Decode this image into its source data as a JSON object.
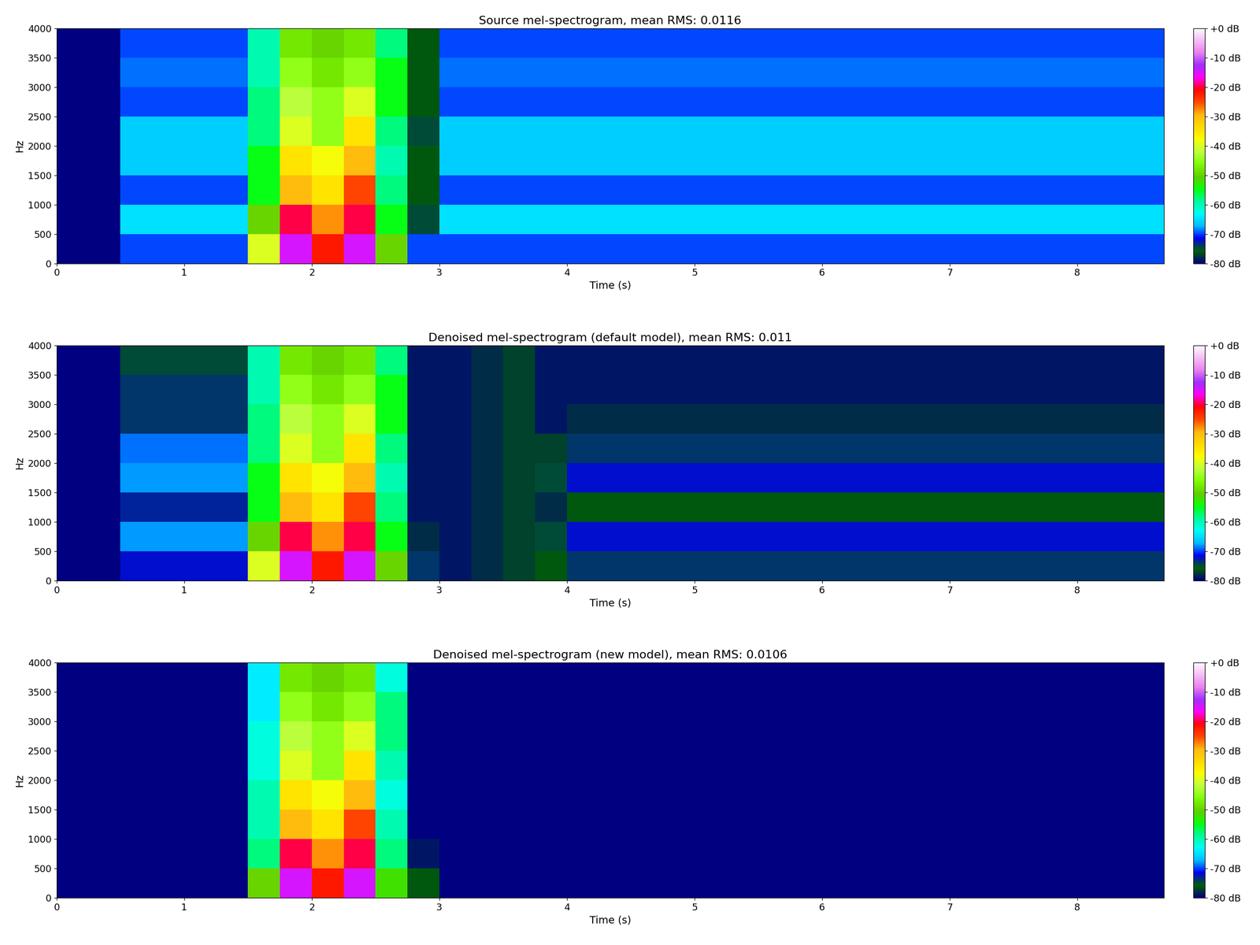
{
  "chart_data": [
    {
      "type": "heatmap",
      "title": "Source mel-spectrogram, mean RMS: 0.0116",
      "x_label": "Time (s)",
      "y_label": "Hz",
      "x_edges": [
        0,
        0.25,
        0.5,
        0.75,
        1,
        1.25,
        1.5,
        1.75,
        2,
        2.25,
        2.5,
        2.75,
        3,
        3.25,
        3.5,
        3.75,
        4,
        4.25,
        4.5,
        4.75,
        5,
        5.25,
        5.5,
        5.75,
        6,
        6.25,
        6.5,
        6.75,
        7,
        7.25,
        7.5,
        7.75,
        8,
        8.25,
        8.5,
        8.68
      ],
      "y_edges": [
        0,
        500,
        1000,
        1500,
        2000,
        2500,
        3000,
        3500,
        4000
      ],
      "cells": [
        [
          -80,
          -80,
          -70,
          -70,
          -70,
          -70,
          -40,
          -15,
          -22,
          -15,
          -50,
          -70,
          -70,
          -70,
          -70,
          -70,
          -70,
          -70,
          -70,
          -70,
          -70,
          -70,
          -70,
          -70,
          -70,
          -70,
          -70,
          -70,
          -70,
          -70,
          -70,
          -70,
          -70,
          -70,
          -70
        ],
        [
          -80,
          -80,
          -65,
          -65,
          -65,
          -65,
          -50,
          -20,
          -28,
          -20,
          -55,
          -75,
          -65,
          -65,
          -65,
          -65,
          -65,
          -65,
          -65,
          -65,
          -65,
          -65,
          -65,
          -65,
          -65,
          -65,
          -65,
          -65,
          -65,
          -65,
          -65,
          -65,
          -65,
          -65,
          -65
        ],
        [
          -80,
          -80,
          -70,
          -70,
          -70,
          -70,
          -55,
          -30,
          -35,
          -25,
          -58,
          -76,
          -70,
          -70,
          -70,
          -70,
          -70,
          -70,
          -70,
          -70,
          -70,
          -70,
          -70,
          -70,
          -70,
          -70,
          -70,
          -70,
          -70,
          -70,
          -70,
          -70,
          -70,
          -70,
          -70
        ],
        [
          -80,
          -80,
          -66,
          -66,
          -66,
          -66,
          -55,
          -35,
          -38,
          -30,
          -60,
          -76,
          -66,
          -66,
          -66,
          -66,
          -66,
          -66,
          -66,
          -66,
          -66,
          -66,
          -66,
          -66,
          -66,
          -66,
          -66,
          -66,
          -66,
          -66,
          -66,
          -66,
          -66,
          -66,
          -66
        ],
        [
          -80,
          -80,
          -66,
          -66,
          -66,
          -66,
          -58,
          -40,
          -45,
          -35,
          -58,
          -75,
          -66,
          -66,
          -66,
          -66,
          -66,
          -66,
          -66,
          -66,
          -66,
          -66,
          -66,
          -66,
          -66,
          -66,
          -66,
          -66,
          -66,
          -66,
          -66,
          -66,
          -66,
          -66,
          -66
        ],
        [
          -80,
          -80,
          -70,
          -70,
          -70,
          -70,
          -58,
          -42,
          -45,
          -40,
          -55,
          -76,
          -70,
          -70,
          -70,
          -70,
          -70,
          -70,
          -70,
          -70,
          -70,
          -70,
          -70,
          -70,
          -70,
          -70,
          -70,
          -70,
          -70,
          -70,
          -70,
          -70,
          -70,
          -70,
          -70
        ],
        [
          -80,
          -80,
          -69,
          -69,
          -69,
          -69,
          -60,
          -45,
          -48,
          -45,
          -55,
          -76,
          -69,
          -69,
          -69,
          -69,
          -69,
          -69,
          -69,
          -69,
          -69,
          -69,
          -69,
          -69,
          -69,
          -69,
          -69,
          -69,
          -69,
          -69,
          -69,
          -69,
          -69,
          -69,
          -69
        ],
        [
          -80,
          -80,
          -70,
          -70,
          -70,
          -70,
          -60,
          -48,
          -50,
          -48,
          -58,
          -76,
          -70,
          -70,
          -70,
          -70,
          -70,
          -70,
          -70,
          -70,
          -70,
          -70,
          -70,
          -70,
          -70,
          -70,
          -70,
          -70,
          -70,
          -70,
          -70,
          -70,
          -70,
          -70,
          -70
        ]
      ],
      "xlim": [
        0,
        8.68
      ],
      "ylim": [
        0,
        4000
      ],
      "xticks": [
        0,
        1,
        2,
        3,
        4,
        5,
        6,
        7,
        8
      ],
      "yticks": [
        0,
        500,
        1000,
        1500,
        2000,
        2500,
        3000,
        3500,
        4000
      ],
      "colorbar": {
        "range": [
          -80,
          0
        ],
        "ticks": [
          {
            "value": 0,
            "label": "+0 dB"
          },
          {
            "value": -10,
            "label": "-10 dB"
          },
          {
            "value": -20,
            "label": "-20 dB"
          },
          {
            "value": -30,
            "label": "-30 dB"
          },
          {
            "value": -40,
            "label": "-40 dB"
          },
          {
            "value": -50,
            "label": "-50 dB"
          },
          {
            "value": -60,
            "label": "-60 dB"
          },
          {
            "value": -70,
            "label": "-70 dB"
          },
          {
            "value": -80,
            "label": "-80 dB"
          }
        ]
      }
    },
    {
      "type": "heatmap",
      "title": "Denoised mel-spectrogram (default model), mean RMS: 0.011",
      "x_label": "Time (s)",
      "y_label": "Hz",
      "x_edges": [
        0,
        0.25,
        0.5,
        0.75,
        1,
        1.25,
        1.5,
        1.75,
        2,
        2.25,
        2.5,
        2.75,
        3,
        3.25,
        3.5,
        3.75,
        4,
        4.25,
        4.5,
        4.75,
        5,
        5.25,
        5.5,
        5.75,
        6,
        6.25,
        6.5,
        6.75,
        7,
        7.25,
        7.5,
        7.75,
        8,
        8.25,
        8.5,
        8.68
      ],
      "y_edges": [
        0,
        500,
        1000,
        1500,
        2000,
        2500,
        3000,
        3500,
        4000
      ],
      "cells": [
        [
          -80,
          -80,
          -72,
          -72,
          -72,
          -72,
          -40,
          -15,
          -22,
          -15,
          -50,
          -74,
          -79,
          -78,
          -77,
          -76,
          -74,
          -74,
          -74,
          -74,
          -74,
          -74,
          -74,
          -74,
          -74,
          -74,
          -74,
          -74,
          -74,
          -74,
          -74,
          -74,
          -74,
          -74,
          -74
        ],
        [
          -80,
          -80,
          -68,
          -68,
          -68,
          -68,
          -50,
          -20,
          -28,
          -20,
          -55,
          -78,
          -79,
          -78,
          -77,
          -75,
          -72,
          -72,
          -72,
          -72,
          -72,
          -72,
          -72,
          -72,
          -72,
          -72,
          -72,
          -72,
          -72,
          -72,
          -72,
          -72,
          -72,
          -72,
          -72
        ],
        [
          -80,
          -80,
          -73,
          -73,
          -73,
          -73,
          -55,
          -30,
          -35,
          -25,
          -58,
          -79,
          -79,
          -78,
          -77,
          -78,
          -76,
          -76,
          -76,
          -76,
          -76,
          -76,
          -76,
          -76,
          -76,
          -76,
          -76,
          -76,
          -76,
          -76,
          -76,
          -76,
          -76,
          -76,
          -76
        ],
        [
          -80,
          -80,
          -68,
          -68,
          -68,
          -68,
          -55,
          -35,
          -38,
          -30,
          -60,
          -79,
          -79,
          -78,
          -77,
          -75,
          -72,
          -72,
          -72,
          -72,
          -72,
          -72,
          -72,
          -72,
          -72,
          -72,
          -72,
          -72,
          -72,
          -72,
          -72,
          -72,
          -72,
          -72,
          -72
        ],
        [
          -80,
          -80,
          -69,
          -69,
          -69,
          -69,
          -58,
          -40,
          -45,
          -35,
          -58,
          -79,
          -79,
          -78,
          -77,
          -77,
          -74,
          -74,
          -74,
          -74,
          -74,
          -74,
          -74,
          -74,
          -74,
          -74,
          -74,
          -74,
          -74,
          -74,
          -74,
          -74,
          -74,
          -74,
          -74
        ],
        [
          -80,
          -80,
          -74,
          -74,
          -74,
          -74,
          -58,
          -42,
          -45,
          -40,
          -55,
          -79,
          -79,
          -78,
          -77,
          -79,
          -78,
          -78,
          -78,
          -78,
          -78,
          -78,
          -78,
          -78,
          -78,
          -78,
          -78,
          -78,
          -78,
          -78,
          -78,
          -78,
          -78,
          -78,
          -78
        ],
        [
          -80,
          -80,
          -74,
          -74,
          -74,
          -74,
          -60,
          -45,
          -48,
          -45,
          -55,
          -79,
          -79,
          -78,
          -77,
          -79,
          -79,
          -79,
          -79,
          -79,
          -79,
          -79,
          -79,
          -79,
          -79,
          -79,
          -79,
          -79,
          -79,
          -79,
          -79,
          -79,
          -79,
          -79,
          -79
        ],
        [
          -80,
          -80,
          -75,
          -75,
          -75,
          -75,
          -60,
          -48,
          -50,
          -48,
          -58,
          -79,
          -79,
          -78,
          -77,
          -79,
          -79,
          -79,
          -79,
          -79,
          -79,
          -79,
          -79,
          -79,
          -79,
          -79,
          -79,
          -79,
          -79,
          -79,
          -79,
          -79,
          -79,
          -79,
          -79
        ]
      ],
      "xlim": [
        0,
        8.68
      ],
      "ylim": [
        0,
        4000
      ],
      "xticks": [
        0,
        1,
        2,
        3,
        4,
        5,
        6,
        7,
        8
      ],
      "yticks": [
        0,
        500,
        1000,
        1500,
        2000,
        2500,
        3000,
        3500,
        4000
      ],
      "colorbar": {
        "range": [
          -80,
          0
        ],
        "ticks": [
          {
            "value": 0,
            "label": "+0 dB"
          },
          {
            "value": -10,
            "label": "-10 dB"
          },
          {
            "value": -20,
            "label": "-20 dB"
          },
          {
            "value": -30,
            "label": "-30 dB"
          },
          {
            "value": -40,
            "label": "-40 dB"
          },
          {
            "value": -50,
            "label": "-50 dB"
          },
          {
            "value": -60,
            "label": "-60 dB"
          },
          {
            "value": -70,
            "label": "-70 dB"
          },
          {
            "value": -80,
            "label": "-80 dB"
          }
        ]
      }
    },
    {
      "type": "heatmap",
      "title": "Denoised mel-spectrogram (new model), mean RMS: 0.0106",
      "x_label": "Time (s)",
      "y_label": "Hz",
      "x_edges": [
        0,
        0.25,
        0.5,
        0.75,
        1,
        1.25,
        1.5,
        1.75,
        2,
        2.25,
        2.5,
        2.75,
        3,
        3.25,
        3.5,
        3.75,
        4,
        4.25,
        4.5,
        4.75,
        5,
        5.25,
        5.5,
        5.75,
        6,
        6.25,
        6.5,
        6.75,
        7,
        7.25,
        7.5,
        7.75,
        8,
        8.25,
        8.5,
        8.68
      ],
      "y_edges": [
        0,
        500,
        1000,
        1500,
        2000,
        2500,
        3000,
        3500,
        4000
      ],
      "cells": [
        [
          -80,
          -80,
          -80,
          -80,
          -80,
          -80,
          -50,
          -15,
          -22,
          -15,
          -52,
          -76,
          -80,
          -80,
          -80,
          -80,
          -80,
          -80,
          -80,
          -80,
          -80,
          -80,
          -80,
          -80,
          -80,
          -80,
          -80,
          -80,
          -80,
          -80,
          -80,
          -80,
          -80,
          -80,
          -80
        ],
        [
          -80,
          -80,
          -80,
          -80,
          -80,
          -80,
          -58,
          -20,
          -28,
          -20,
          -58,
          -79,
          -80,
          -80,
          -80,
          -80,
          -80,
          -80,
          -80,
          -80,
          -80,
          -80,
          -80,
          -80,
          -80,
          -80,
          -80,
          -80,
          -80,
          -80,
          -80,
          -80,
          -80,
          -80,
          -80
        ],
        [
          -80,
          -80,
          -80,
          -80,
          -80,
          -80,
          -60,
          -30,
          -35,
          -25,
          -60,
          -80,
          -80,
          -80,
          -80,
          -80,
          -80,
          -80,
          -80,
          -80,
          -80,
          -80,
          -80,
          -80,
          -80,
          -80,
          -80,
          -80,
          -80,
          -80,
          -80,
          -80,
          -80,
          -80,
          -80
        ],
        [
          -80,
          -80,
          -80,
          -80,
          -80,
          -80,
          -60,
          -35,
          -38,
          -30,
          -62,
          -80,
          -80,
          -80,
          -80,
          -80,
          -80,
          -80,
          -80,
          -80,
          -80,
          -80,
          -80,
          -80,
          -80,
          -80,
          -80,
          -80,
          -80,
          -80,
          -80,
          -80,
          -80,
          -80,
          -80
        ],
        [
          -80,
          -80,
          -80,
          -80,
          -80,
          -80,
          -62,
          -40,
          -45,
          -35,
          -60,
          -80,
          -80,
          -80,
          -80,
          -80,
          -80,
          -80,
          -80,
          -80,
          -80,
          -80,
          -80,
          -80,
          -80,
          -80,
          -80,
          -80,
          -80,
          -80,
          -80,
          -80,
          -80,
          -80,
          -80
        ],
        [
          -80,
          -80,
          -80,
          -80,
          -80,
          -80,
          -62,
          -42,
          -45,
          -40,
          -58,
          -80,
          -80,
          -80,
          -80,
          -80,
          -80,
          -80,
          -80,
          -80,
          -80,
          -80,
          -80,
          -80,
          -80,
          -80,
          -80,
          -80,
          -80,
          -80,
          -80,
          -80,
          -80,
          -80,
          -80
        ],
        [
          -80,
          -80,
          -80,
          -80,
          -80,
          -80,
          -64,
          -45,
          -48,
          -45,
          -58,
          -80,
          -80,
          -80,
          -80,
          -80,
          -80,
          -80,
          -80,
          -80,
          -80,
          -80,
          -80,
          -80,
          -80,
          -80,
          -80,
          -80,
          -80,
          -80,
          -80,
          -80,
          -80,
          -80,
          -80
        ],
        [
          -80,
          -80,
          -80,
          -80,
          -80,
          -80,
          -64,
          -48,
          -50,
          -48,
          -62,
          -80,
          -80,
          -80,
          -80,
          -80,
          -80,
          -80,
          -80,
          -80,
          -80,
          -80,
          -80,
          -80,
          -80,
          -80,
          -80,
          -80,
          -80,
          -80,
          -80,
          -80,
          -80,
          -80,
          -80
        ]
      ],
      "xlim": [
        0,
        8.68
      ],
      "ylim": [
        0,
        4000
      ],
      "xticks": [
        0,
        1,
        2,
        3,
        4,
        5,
        6,
        7,
        8
      ],
      "yticks": [
        0,
        500,
        1000,
        1500,
        2000,
        2500,
        3000,
        3500,
        4000
      ],
      "colorbar": {
        "range": [
          -80,
          0
        ],
        "ticks": [
          {
            "value": 0,
            "label": "+0 dB"
          },
          {
            "value": -10,
            "label": "-10 dB"
          },
          {
            "value": -20,
            "label": "-20 dB"
          },
          {
            "value": -30,
            "label": "-30 dB"
          },
          {
            "value": -40,
            "label": "-40 dB"
          },
          {
            "value": -50,
            "label": "-50 dB"
          },
          {
            "value": -60,
            "label": "-60 dB"
          },
          {
            "value": -70,
            "label": "-70 dB"
          },
          {
            "value": -80,
            "label": "-80 dB"
          }
        ]
      }
    }
  ]
}
